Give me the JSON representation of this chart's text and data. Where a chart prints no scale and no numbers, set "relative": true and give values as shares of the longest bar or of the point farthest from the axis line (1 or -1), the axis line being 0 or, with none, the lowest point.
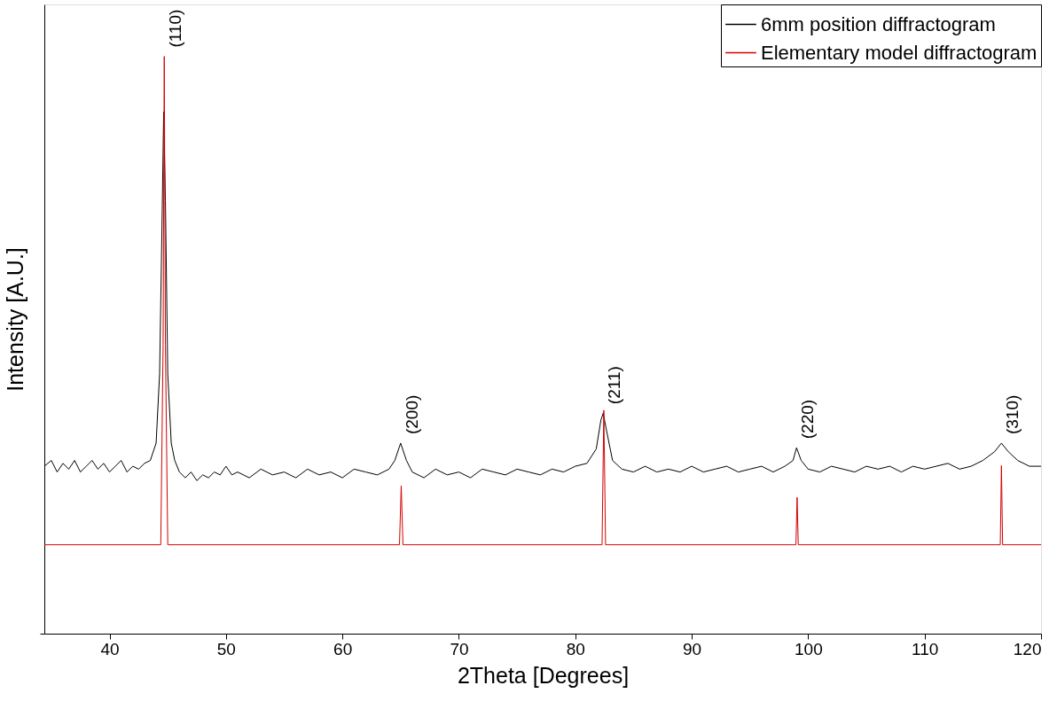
{
  "chart_data": {
    "type": "line",
    "relative": true,
    "xlabel": "2Theta [Degrees]",
    "ylabel": "Intensity [A.U.]",
    "xlim": [
      34.4,
      120
    ],
    "xticks": [
      40,
      50,
      60,
      70,
      80,
      90,
      100,
      110,
      120
    ],
    "tick_labels": "x",
    "grid": false,
    "legend": "top right",
    "line_style": "solid",
    "marker": "none",
    "series": [
      {
        "name": "6mm position diffractogram",
        "color": "#000000",
        "x": [
          34.4,
          35,
          35.5,
          36,
          36.5,
          37,
          37.5,
          38,
          38.5,
          39,
          39.5,
          40,
          40.5,
          41,
          41.5,
          42,
          42.5,
          43,
          43.5,
          44,
          44.3,
          44.5,
          44.65,
          44.8,
          45.0,
          45.3,
          45.6,
          46,
          46.5,
          47,
          47.5,
          48,
          48.5,
          49,
          49.5,
          50,
          50.5,
          51,
          52,
          53,
          54,
          55,
          56,
          57,
          58,
          59,
          60,
          61,
          62,
          63,
          64,
          64.5,
          65.0,
          65.5,
          66,
          67,
          68,
          69,
          70,
          71,
          72,
          73,
          74,
          75,
          76,
          77,
          78,
          79,
          80,
          81,
          81.8,
          82.2,
          82.4,
          82.7,
          83.2,
          84,
          85,
          86,
          87,
          88,
          89,
          90,
          91,
          92,
          93,
          94,
          95,
          96,
          97,
          98,
          98.7,
          99.0,
          99.4,
          100,
          101,
          102,
          103,
          104,
          105,
          106,
          107,
          108,
          109,
          110,
          111,
          112,
          113,
          114,
          115,
          116,
          116.6,
          117.2,
          118,
          119,
          120
        ],
        "values": [
          0.29,
          0.3,
          0.28,
          0.295,
          0.285,
          0.3,
          0.28,
          0.29,
          0.3,
          0.285,
          0.295,
          0.28,
          0.29,
          0.3,
          0.28,
          0.29,
          0.285,
          0.295,
          0.3,
          0.33,
          0.45,
          0.7,
          0.904,
          0.75,
          0.45,
          0.33,
          0.3,
          0.28,
          0.27,
          0.28,
          0.265,
          0.275,
          0.27,
          0.28,
          0.275,
          0.29,
          0.275,
          0.28,
          0.27,
          0.285,
          0.275,
          0.28,
          0.27,
          0.285,
          0.275,
          0.28,
          0.27,
          0.285,
          0.28,
          0.275,
          0.285,
          0.3,
          0.33,
          0.3,
          0.28,
          0.27,
          0.285,
          0.275,
          0.28,
          0.27,
          0.285,
          0.28,
          0.275,
          0.285,
          0.28,
          0.275,
          0.285,
          0.28,
          0.29,
          0.295,
          0.32,
          0.37,
          0.382,
          0.35,
          0.3,
          0.285,
          0.28,
          0.29,
          0.28,
          0.285,
          0.28,
          0.29,
          0.28,
          0.285,
          0.29,
          0.28,
          0.285,
          0.29,
          0.28,
          0.29,
          0.3,
          0.322,
          0.3,
          0.285,
          0.28,
          0.29,
          0.285,
          0.28,
          0.29,
          0.285,
          0.29,
          0.28,
          0.29,
          0.285,
          0.29,
          0.295,
          0.285,
          0.29,
          0.3,
          0.315,
          0.33,
          0.315,
          0.3,
          0.29,
          0.29
        ]
      },
      {
        "name": "Elementary model diffractogram",
        "color": "#d40000",
        "x": [
          34.4,
          44.4,
          44.6,
          44.7,
          44.8,
          45.0,
          64.9,
          65.05,
          65.2,
          82.3,
          82.45,
          82.6,
          98.95,
          99.05,
          99.15,
          116.5,
          116.6,
          116.7,
          120
        ],
        "values": [
          0.154,
          0.154,
          0.5,
          1.0,
          0.5,
          0.154,
          0.154,
          0.256,
          0.154,
          0.154,
          0.387,
          0.154,
          0.154,
          0.236,
          0.154,
          0.154,
          0.291,
          0.154,
          0.154
        ]
      }
    ],
    "annotations": [
      {
        "text": "(110)",
        "x": 44.7,
        "y": 1.0
      },
      {
        "text": "(200)",
        "x": 65.0,
        "y": 0.33
      },
      {
        "text": "(211)",
        "x": 82.4,
        "y": 0.382
      },
      {
        "text": "(220)",
        "x": 99.0,
        "y": 0.322
      },
      {
        "text": "(310)",
        "x": 116.6,
        "y": 0.33
      }
    ]
  }
}
